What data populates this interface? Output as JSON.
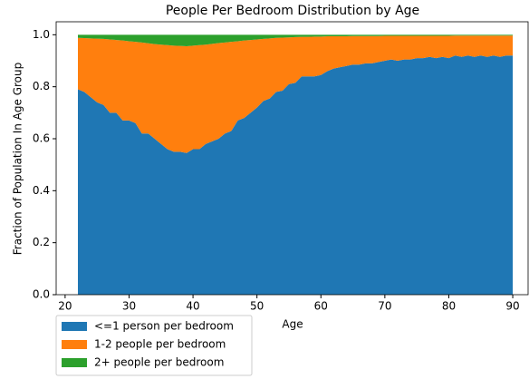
{
  "chart_data": {
    "type": "stacked_area",
    "title": "People Per Bedroom Distribution by Age",
    "x_label": "Age",
    "y_label": "Fraction of Population In Age Group",
    "x": [
      22,
      23,
      24,
      25,
      26,
      27,
      28,
      29,
      30,
      31,
      32,
      33,
      34,
      35,
      36,
      37,
      38,
      39,
      40,
      41,
      42,
      43,
      44,
      45,
      46,
      47,
      48,
      49,
      50,
      51,
      52,
      53,
      54,
      55,
      56,
      57,
      58,
      59,
      60,
      61,
      62,
      63,
      64,
      65,
      66,
      67,
      68,
      69,
      70,
      71,
      72,
      73,
      74,
      75,
      76,
      77,
      78,
      79,
      80,
      81,
      82,
      83,
      84,
      85,
      86,
      87,
      88,
      89,
      90
    ],
    "series": [
      {
        "name": "<=1 person per bedroom",
        "color": "#1f77b4",
        "values": [
          0.79,
          0.78,
          0.76,
          0.74,
          0.73,
          0.7,
          0.7,
          0.67,
          0.67,
          0.66,
          0.62,
          0.62,
          0.6,
          0.58,
          0.56,
          0.55,
          0.55,
          0.545,
          0.56,
          0.56,
          0.58,
          0.59,
          0.6,
          0.62,
          0.63,
          0.67,
          0.68,
          0.7,
          0.72,
          0.745,
          0.755,
          0.78,
          0.785,
          0.81,
          0.815,
          0.84,
          0.84,
          0.84,
          0.845,
          0.86,
          0.87,
          0.875,
          0.88,
          0.885,
          0.885,
          0.89,
          0.89,
          0.895,
          0.9,
          0.905,
          0.9,
          0.905,
          0.905,
          0.91,
          0.91,
          0.915,
          0.91,
          0.915,
          0.91,
          0.92,
          0.915,
          0.92,
          0.915,
          0.92,
          0.915,
          0.92,
          0.915,
          0.92,
          0.92
        ]
      },
      {
        "name": "1-2 people per bedroom",
        "color": "#ff7f0e",
        "values": [
          0.198,
          0.207,
          0.226,
          0.245,
          0.254,
          0.282,
          0.28,
          0.308,
          0.305,
          0.313,
          0.35,
          0.347,
          0.364,
          0.382,
          0.4,
          0.408,
          0.407,
          0.411,
          0.398,
          0.4,
          0.382,
          0.375,
          0.368,
          0.35,
          0.343,
          0.305,
          0.298,
          0.28,
          0.262,
          0.239,
          0.231,
          0.208,
          0.204,
          0.18,
          0.176,
          0.152,
          0.152,
          0.153,
          0.148,
          0.134,
          0.124,
          0.119,
          0.114,
          0.11,
          0.11,
          0.105,
          0.105,
          0.1,
          0.096,
          0.091,
          0.096,
          0.091,
          0.091,
          0.086,
          0.086,
          0.081,
          0.086,
          0.081,
          0.086,
          0.077,
          0.082,
          0.077,
          0.082,
          0.077,
          0.082,
          0.077,
          0.082,
          0.077,
          0.077
        ]
      },
      {
        "name": "2+ people per bedroom",
        "color": "#2ca02c",
        "values": [
          0.012,
          0.013,
          0.014,
          0.015,
          0.016,
          0.018,
          0.02,
          0.022,
          0.025,
          0.027,
          0.03,
          0.033,
          0.036,
          0.038,
          0.04,
          0.042,
          0.043,
          0.044,
          0.042,
          0.04,
          0.038,
          0.035,
          0.032,
          0.03,
          0.027,
          0.025,
          0.022,
          0.02,
          0.018,
          0.016,
          0.014,
          0.012,
          0.011,
          0.01,
          0.009,
          0.008,
          0.008,
          0.007,
          0.007,
          0.006,
          0.006,
          0.006,
          0.006,
          0.005,
          0.005,
          0.005,
          0.005,
          0.005,
          0.004,
          0.004,
          0.004,
          0.004,
          0.004,
          0.004,
          0.004,
          0.004,
          0.004,
          0.004,
          0.004,
          0.003,
          0.003,
          0.003,
          0.003,
          0.003,
          0.003,
          0.003,
          0.003,
          0.003,
          0.003
        ]
      }
    ],
    "xlim": [
      18.6,
      92.4
    ],
    "ylim": [
      0,
      1.05
    ],
    "xticks": [
      20,
      30,
      40,
      50,
      60,
      70,
      80,
      90
    ],
    "yticks": [
      {
        "value": 0,
        "label": "0.0"
      },
      {
        "value": 0.2,
        "label": "0.2"
      },
      {
        "value": 0.4,
        "label": "0.4"
      },
      {
        "value": 0.6,
        "label": "0.6"
      },
      {
        "value": 0.8,
        "label": "0.8"
      },
      {
        "value": 1,
        "label": "1.0"
      }
    ],
    "legend": "lower left"
  }
}
